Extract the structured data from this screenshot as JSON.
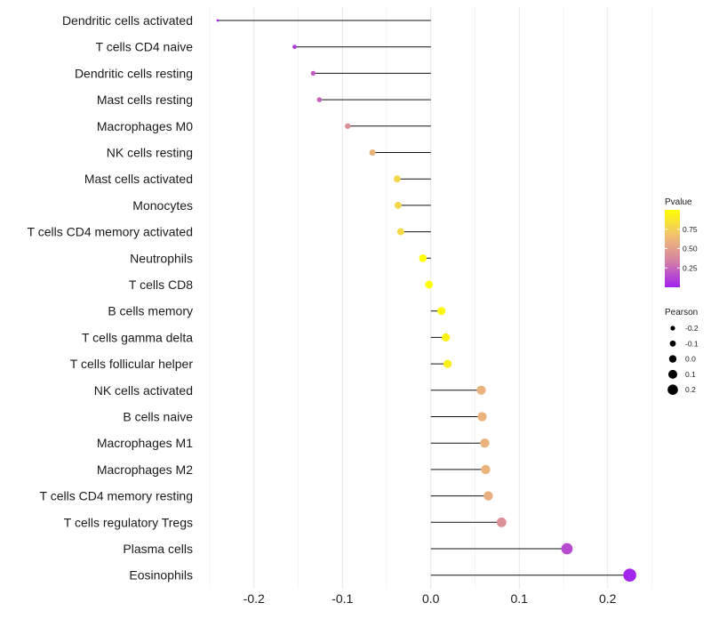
{
  "chart_data": {
    "type": "lollipop",
    "title": "",
    "xlabel": "",
    "ylabel": "",
    "xlim": [
      -0.25,
      0.235
    ],
    "xticks": [
      -0.2,
      -0.1,
      0.0,
      0.1,
      0.2
    ],
    "xtick_labels": [
      "-0.2",
      "-0.1",
      "0.0",
      "0.1",
      "0.2"
    ],
    "categories": [
      "Dendritic cells activated",
      "T cells CD4 naive",
      "Dendritic cells resting",
      "Mast cells resting",
      "Macrophages M0",
      "NK cells resting",
      "Mast cells activated",
      "Monocytes",
      "T cells CD4 memory activated",
      "Neutrophils",
      "T cells CD8",
      "B cells memory",
      "T cells gamma delta",
      "T cells follicular helper",
      "NK cells activated",
      "B cells naive",
      "Macrophages M1",
      "Macrophages M2",
      "T cells CD4 memory resting",
      "T cells regulatory  Tregs",
      "Plasma cells",
      "Eosinophils"
    ],
    "pearson": [
      -0.241,
      -0.154,
      -0.133,
      -0.126,
      -0.094,
      -0.066,
      -0.038,
      -0.037,
      -0.034,
      -0.009,
      -0.002,
      0.012,
      0.017,
      0.019,
      0.057,
      0.058,
      0.061,
      0.062,
      0.065,
      0.08,
      0.154,
      0.225
    ],
    "pvalue": [
      0.0,
      0.1,
      0.2,
      0.23,
      0.42,
      0.6,
      0.78,
      0.78,
      0.8,
      0.99,
      1.0,
      0.96,
      0.93,
      0.92,
      0.6,
      0.6,
      0.6,
      0.6,
      0.58,
      0.42,
      0.15,
      0.02
    ],
    "colorbar": {
      "title": "Pvalue",
      "range": [
        0.0,
        1.0
      ],
      "ticks": [
        0.25,
        0.5,
        0.75
      ],
      "tick_labels": [
        "0.25",
        "0.50",
        "0.75"
      ],
      "colors": [
        "#a020f0",
        "#d480a6",
        "#f0bf72",
        "#ffff00"
      ]
    },
    "size_legend": {
      "title": "Pearson",
      "values": [
        -0.2,
        -0.1,
        0.0,
        0.1,
        0.2
      ],
      "labels": [
        "-0.2",
        "-0.1",
        "0.0",
        "0.1",
        "0.2"
      ]
    },
    "grid": true
  }
}
